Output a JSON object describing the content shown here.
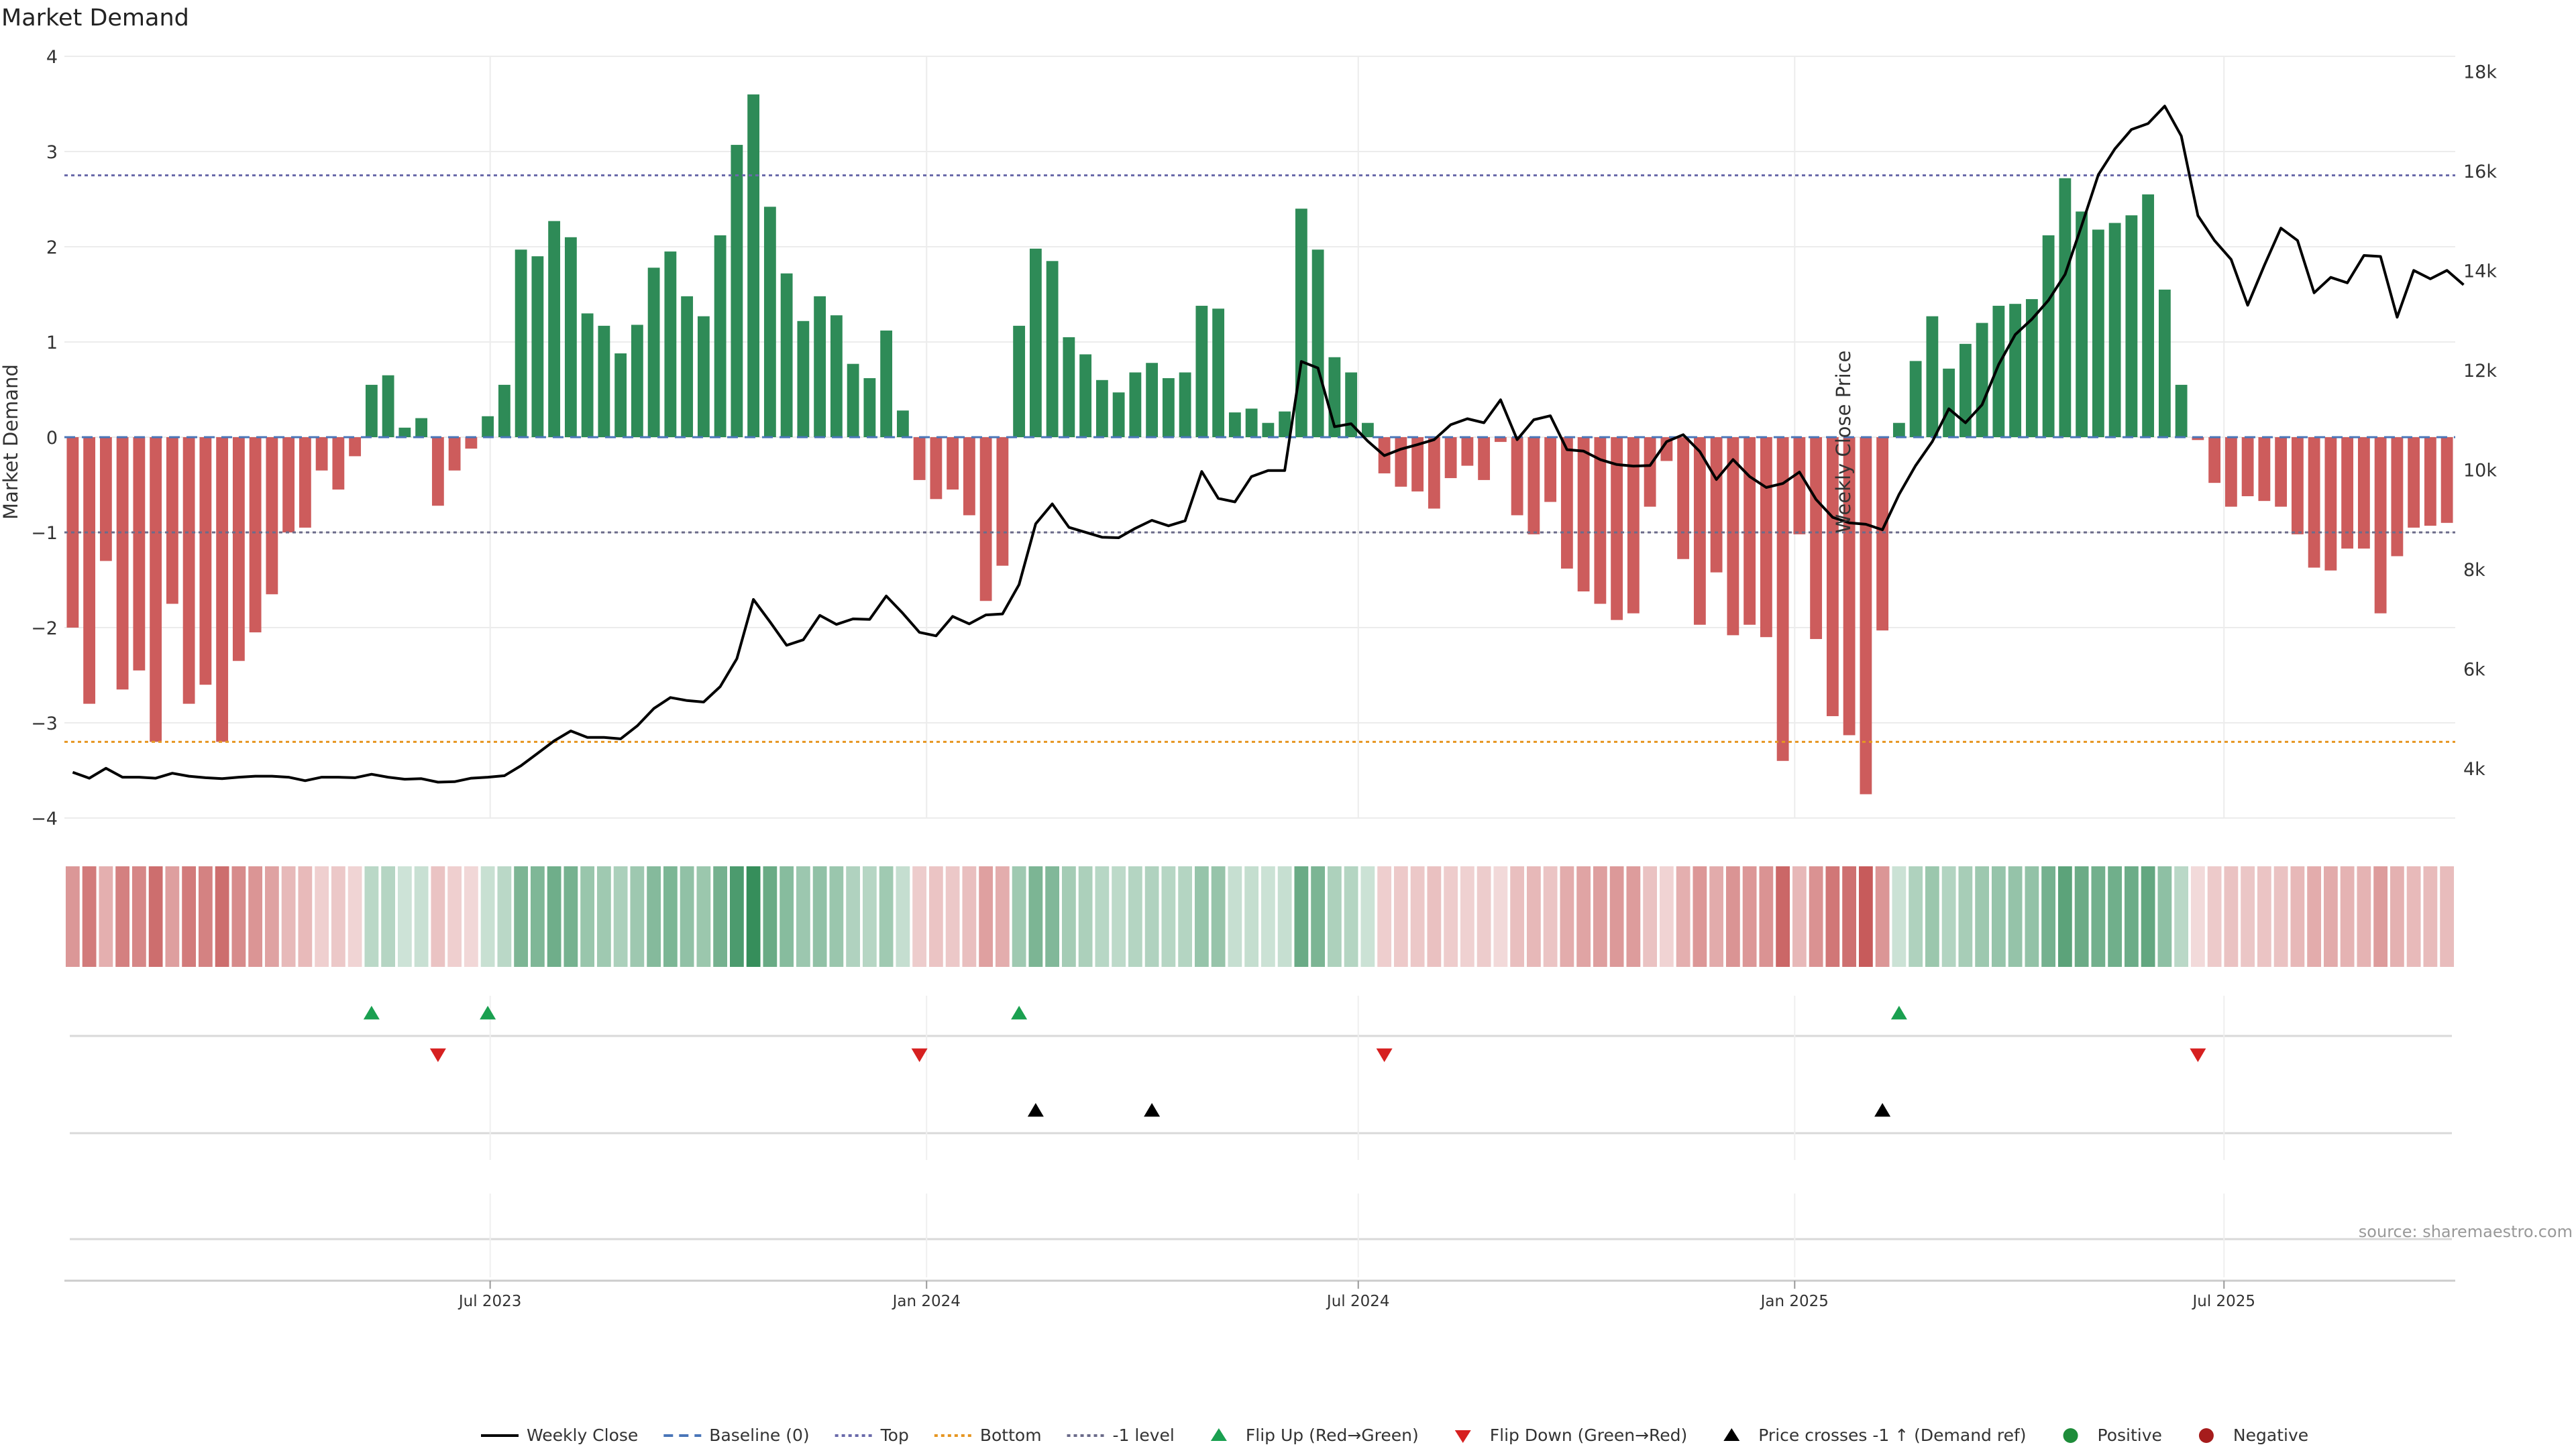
{
  "chart_data": {
    "type": "bar",
    "title": "Market Demand",
    "ylabel": "Market Demand",
    "y2label": "Weekly Close Price",
    "ylim": [
      -4,
      4
    ],
    "y2lim": [
      3000,
      18300
    ],
    "yticks": [
      "4",
      "3",
      "2",
      "1",
      "0",
      "−1",
      "−2",
      "−3",
      "−4"
    ],
    "y2ticks": [
      "18k",
      "16k",
      "14k",
      "12k",
      "10k",
      "8k",
      "6k",
      "4k"
    ],
    "xticks": [
      "Jul 2023",
      "Jan 2024",
      "Jul 2024",
      "Jan 2025",
      "Jul 2025"
    ],
    "x_range": [
      "2023-01-06",
      "2025-10-31"
    ],
    "x_frequency": "weekly",
    "reference_lines": {
      "top": 2.75,
      "bottom": -3.2,
      "minus_one": -1,
      "baseline": 0
    },
    "series": [
      {
        "name": "Market Demand",
        "values": [
          -2.0,
          -2.8,
          -1.3,
          -2.65,
          -2.45,
          -3.2,
          -1.75,
          -2.8,
          -2.6,
          -3.2,
          -2.35,
          -2.05,
          -1.65,
          -1.0,
          -0.95,
          -0.35,
          -0.55,
          -0.2,
          0.55,
          0.65,
          0.1,
          0.2,
          -0.72,
          -0.35,
          -0.12,
          0.22,
          0.55,
          1.97,
          1.9,
          2.27,
          2.1,
          1.3,
          1.17,
          0.88,
          1.18,
          1.78,
          1.95,
          1.48,
          1.27,
          2.12,
          3.07,
          3.6,
          2.42,
          1.72,
          1.22,
          1.48,
          1.28,
          0.77,
          0.62,
          1.12,
          0.28,
          -0.45,
          -0.65,
          -0.55,
          -0.82,
          -1.72,
          -1.35,
          1.17,
          1.98,
          1.85,
          1.05,
          0.87,
          0.6,
          0.47,
          0.68,
          0.78,
          0.62,
          0.68,
          1.38,
          1.35,
          0.26,
          0.3,
          0.15,
          0.27,
          2.4,
          1.97,
          0.84,
          0.68,
          0.15,
          -0.38,
          -0.52,
          -0.57,
          -0.75,
          -0.43,
          -0.3,
          -0.45,
          -0.05,
          -0.82,
          -1.02,
          -0.68,
          -1.38,
          -1.62,
          -1.75,
          -1.92,
          -1.85,
          -0.73,
          -0.25,
          -1.28,
          -1.97,
          -1.42,
          -2.08,
          -1.97,
          -2.1,
          -3.4,
          -1.02,
          -2.12,
          -2.93,
          -3.13,
          -3.75,
          -2.03,
          0.15,
          0.8,
          1.27,
          0.72,
          0.98,
          1.2,
          1.38,
          1.4,
          1.45,
          2.12,
          2.72,
          2.37,
          2.18,
          2.25,
          2.33,
          2.55,
          1.55,
          0.55,
          -0.03,
          -0.48,
          -0.73,
          -0.62,
          -0.67,
          -0.73,
          -1.02,
          -1.37,
          -1.4,
          -1.17,
          -1.17,
          -1.85,
          -1.25,
          -0.95,
          -0.93,
          -0.9
        ]
      },
      {
        "name": "Weekly Close",
        "values": [
          3920,
          3800,
          4000,
          3820,
          3820,
          3800,
          3900,
          3840,
          3810,
          3790,
          3820,
          3840,
          3840,
          3820,
          3750,
          3820,
          3820,
          3810,
          3880,
          3820,
          3780,
          3790,
          3720,
          3730,
          3800,
          3820,
          3850,
          4050,
          4300,
          4550,
          4750,
          4620,
          4620,
          4590,
          4850,
          5200,
          5420,
          5360,
          5330,
          5640,
          6200,
          7390,
          6940,
          6470,
          6580,
          7070,
          6890,
          7000,
          6990,
          7460,
          7110,
          6730,
          6660,
          7050,
          6900,
          7080,
          7100,
          7690,
          8910,
          9310,
          8840,
          8740,
          8640,
          8630,
          8820,
          8980,
          8870,
          8970,
          9960,
          9420,
          9350,
          9860,
          9980,
          9980,
          12170,
          12040,
          10860,
          10920,
          10570,
          10280,
          10410,
          10500,
          10600,
          10900,
          11020,
          10940,
          11400,
          10600,
          11000,
          11080,
          10400,
          10370,
          10200,
          10100,
          10070,
          10080,
          10560,
          10700,
          10360,
          9800,
          10200,
          9860,
          9640,
          9720,
          9950,
          9400,
          9040,
          8930,
          8900,
          8790,
          9500,
          10080,
          10560,
          11220,
          10940,
          11300,
          12110,
          12710,
          13020,
          13400,
          13920,
          14900,
          15920,
          16440,
          16830,
          16950,
          17300,
          16700,
          15100,
          14600,
          14220,
          13300,
          14100,
          14850,
          14600,
          13550,
          13860,
          13750,
          14300,
          14280,
          13060,
          14000,
          13830,
          14000,
          13710
        ]
      }
    ],
    "flip_up_weeks": [
      18,
      25,
      57,
      110
    ],
    "flip_down_weeks": [
      22,
      51,
      79,
      128
    ],
    "price_cross_weeks": [
      58,
      65,
      109
    ],
    "heat_colors": {
      "negative": "#c75b5b",
      "positive": "#2f8a56"
    },
    "colors": {
      "neg_bar": "#cd5c5c",
      "pos_bar": "#2e8b57",
      "price_line": "#000000",
      "baseline": "#4a76b8",
      "top_line": "#6a6aaa",
      "bottom_line": "#e69622",
      "minus_one_line": "#6b6b8a",
      "flip_up": "#1aa050",
      "flip_down": "#d62020",
      "cross_marker": "#000000"
    },
    "source": "source: sharemaestro.com",
    "legend": {
      "position": "bottom",
      "items": [
        {
          "label": "Weekly Close",
          "kind": "line",
          "color": "#000000"
        },
        {
          "label": "Baseline (0)",
          "kind": "dash",
          "color": "#4a76b8"
        },
        {
          "label": "Top",
          "kind": "dot",
          "color": "#6a6aaa"
        },
        {
          "label": "Bottom",
          "kind": "dot",
          "color": "#e69622"
        },
        {
          "label": "-1 level",
          "kind": "dot",
          "color": "#6b6b8a"
        },
        {
          "label": "Flip Up (Red→Green)",
          "kind": "tri-up",
          "color": "#1aa050"
        },
        {
          "label": "Flip Down (Green→Red)",
          "kind": "tri-down",
          "color": "#d62020"
        },
        {
          "label": "Price crosses -1 ↑ (Demand ref)",
          "kind": "tri-up",
          "color": "#000000"
        },
        {
          "label": "Positive",
          "kind": "circle",
          "color": "#1e8c3a"
        },
        {
          "label": "Negative",
          "kind": "circle",
          "color": "#a61c1c"
        }
      ]
    }
  }
}
